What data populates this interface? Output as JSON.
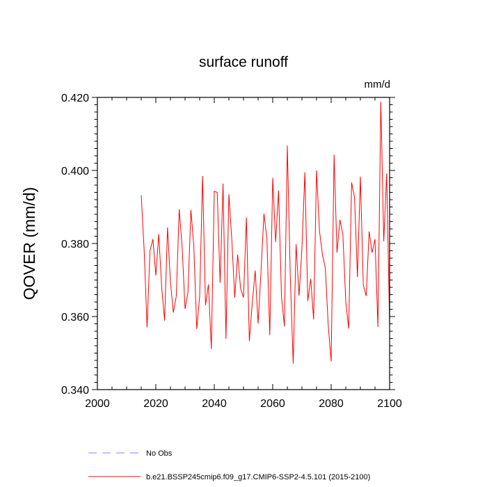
{
  "chart_data": {
    "type": "line",
    "title": "surface runoff",
    "units": "mm/d",
    "xlabel": "",
    "ylabel": "QOVER  (mm/d)",
    "xlim": [
      2000,
      2100
    ],
    "ylim": [
      0.34,
      0.42
    ],
    "xticks": [
      2000,
      2020,
      2040,
      2060,
      2080,
      2100
    ],
    "xtick_labels": [
      "2000",
      "2020",
      "2040",
      "2060",
      "2080",
      "2100"
    ],
    "yticks": [
      0.34,
      0.36,
      0.38,
      0.4,
      0.42
    ],
    "ytick_labels": [
      "0.340",
      "0.360",
      "0.380",
      "0.400",
      "0.420"
    ],
    "grid": false,
    "legend_position": "bottom-left",
    "series": [
      {
        "name": "No Obs",
        "color": "#8080ff",
        "dash": "dashed",
        "x": [],
        "y": []
      },
      {
        "name": "b.e21.BSSP245cmip6.f09_g17.CMIP6-SSP2-4.5.101 (2015-2100)",
        "color": "#ff0000",
        "dash": "solid",
        "x": [
          2015,
          2016,
          2017,
          2018,
          2019,
          2020,
          2021,
          2022,
          2023,
          2024,
          2025,
          2026,
          2027,
          2028,
          2029,
          2030,
          2031,
          2032,
          2033,
          2034,
          2035,
          2036,
          2037,
          2038,
          2039,
          2040,
          2041,
          2042,
          2043,
          2044,
          2045,
          2046,
          2047,
          2048,
          2049,
          2050,
          2051,
          2052,
          2053,
          2054,
          2055,
          2056,
          2057,
          2058,
          2059,
          2060,
          2061,
          2062,
          2063,
          2064,
          2065,
          2066,
          2067,
          2068,
          2069,
          2070,
          2071,
          2072,
          2073,
          2074,
          2075,
          2076,
          2077,
          2078,
          2079,
          2080,
          2081,
          2082,
          2083,
          2084,
          2085,
          2086,
          2087,
          2088,
          2089,
          2090,
          2091,
          2092,
          2093,
          2094,
          2095,
          2096,
          2097,
          2098,
          2099,
          2100
        ],
        "y": [
          0.3932,
          0.3782,
          0.357,
          0.378,
          0.3812,
          0.3712,
          0.3826,
          0.368,
          0.3589,
          0.3844,
          0.3694,
          0.3611,
          0.3656,
          0.3894,
          0.3791,
          0.3621,
          0.3667,
          0.3892,
          0.3792,
          0.3566,
          0.3656,
          0.3985,
          0.3631,
          0.3688,
          0.3511,
          0.3943,
          0.394,
          0.3692,
          0.3964,
          0.3539,
          0.3935,
          0.3811,
          0.3652,
          0.377,
          0.3677,
          0.3652,
          0.3871,
          0.3533,
          0.3636,
          0.3726,
          0.3581,
          0.3724,
          0.3882,
          0.3814,
          0.3549,
          0.398,
          0.3804,
          0.3945,
          0.3654,
          0.3573,
          0.4068,
          0.3714,
          0.3471,
          0.3798,
          0.3657,
          0.3787,
          0.3995,
          0.3643,
          0.3703,
          0.3592,
          0.4,
          0.3835,
          0.377,
          0.3733,
          0.3576,
          0.3477,
          0.4043,
          0.3775,
          0.3865,
          0.3826,
          0.3641,
          0.3567,
          0.3967,
          0.3926,
          0.3708,
          0.3983,
          0.3686,
          0.3656,
          0.3833,
          0.3775,
          0.3812,
          0.3571,
          0.4188,
          0.3806,
          0.3992,
          0.3576
        ]
      }
    ]
  }
}
